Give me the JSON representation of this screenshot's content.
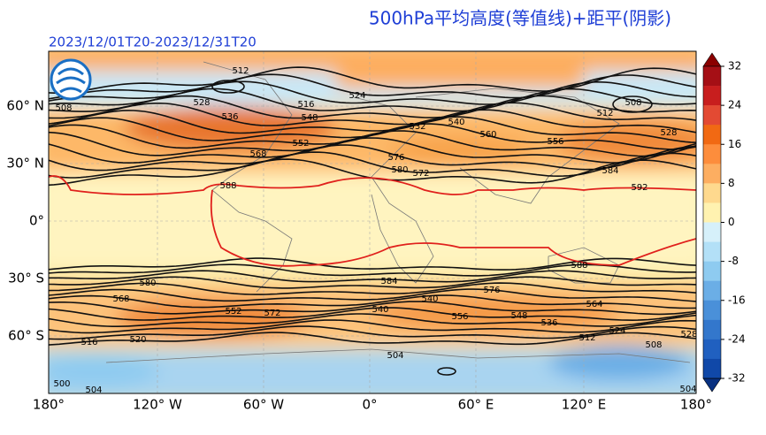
{
  "header": {
    "title": "500hPa平均高度(等值线)+距平(阴影)",
    "subtitle": "2023/12/01T20-2023/12/31T20"
  },
  "axes": {
    "lat_labels": [
      "60° N",
      "30° N",
      "0°",
      "30° S",
      "60° S"
    ],
    "lon_labels": [
      "180°",
      "120° W",
      "60° W",
      "0°",
      "60° E",
      "120° E",
      "180°"
    ]
  },
  "colorbar": {
    "lim": [
      -32,
      32
    ],
    "ticks": [
      32,
      24,
      16,
      8,
      0,
      -8,
      -16,
      -24,
      -32
    ],
    "colors": [
      "#8b0000",
      "#a50f15",
      "#c81e1e",
      "#e34a33",
      "#f16913",
      "#fd8d3c",
      "#fdae61",
      "#fed98e",
      "#fff2b0",
      "#d6f0fa",
      "#b3e0f7",
      "#8ecbf0",
      "#6baee6",
      "#4a90d9",
      "#3377cc",
      "#2060c0",
      "#1048a8",
      "#083080"
    ]
  },
  "contour_labels": [
    "512",
    "508",
    "528",
    "536",
    "524",
    "516",
    "568",
    "552",
    "548",
    "540",
    "532",
    "576",
    "572",
    "560",
    "580",
    "584",
    "592",
    "512",
    "508",
    "528",
    "556",
    "588",
    "588",
    "584",
    "576",
    "580",
    "568",
    "540",
    "552",
    "556",
    "572",
    "540",
    "548",
    "536",
    "564",
    "524",
    "512",
    "508",
    "504",
    "520",
    "516",
    "500",
    "504",
    "528",
    "504"
  ]
}
